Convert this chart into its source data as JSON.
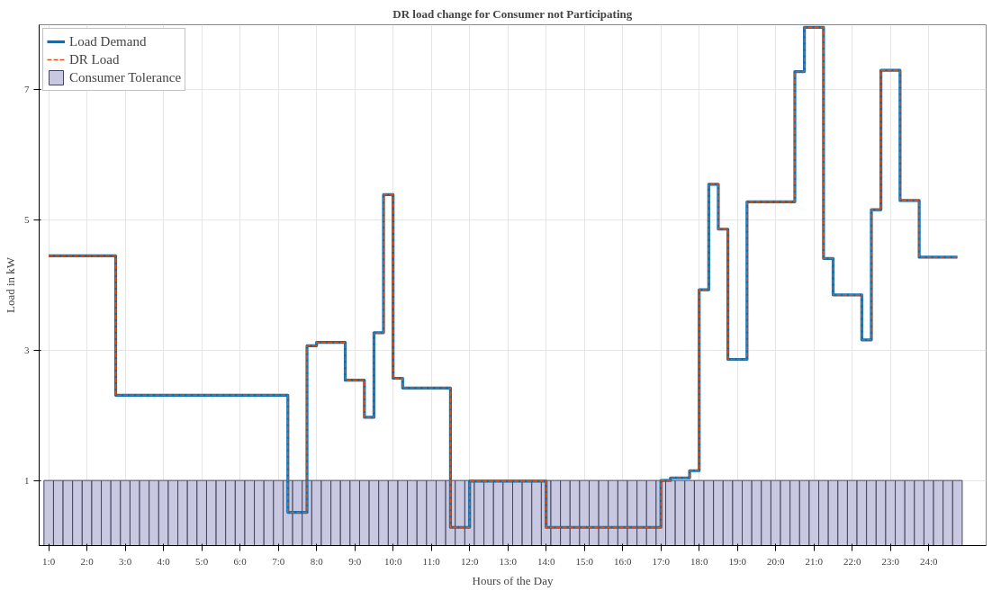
{
  "chart_data": {
    "type": "step",
    "title": "DR load change for Consumer not Participating",
    "xlabel": "Hours of the Day",
    "ylabel": "Load in kW",
    "categories": [
      "1:0",
      null,
      null,
      null,
      "2:0",
      null,
      null,
      null,
      "3:0",
      null,
      null,
      null,
      "4:0",
      null,
      null,
      null,
      "5:0",
      null,
      null,
      null,
      "6:0",
      null,
      null,
      null,
      "7:0",
      null,
      null,
      null,
      "8:0",
      null,
      null,
      null,
      "9:0",
      null,
      null,
      null,
      "10:0",
      null,
      null,
      null,
      "11:0",
      null,
      null,
      null,
      "12:0",
      null,
      null,
      null,
      "13:0",
      null,
      null,
      null,
      "14:0",
      null,
      null,
      null,
      "15:0",
      null,
      null,
      null,
      "16:0",
      null,
      null,
      null,
      "17:0",
      null,
      null,
      null,
      "18:0",
      null,
      null,
      null,
      "19:0",
      null,
      null,
      null,
      "20:0",
      null,
      null,
      null,
      "21:0",
      null,
      null,
      null,
      "22:0",
      null,
      null,
      null,
      "23:0",
      null,
      null,
      null,
      "24:0",
      null,
      null,
      null
    ],
    "ylim": [
      0,
      8
    ],
    "yticks": [
      1,
      3,
      5,
      7
    ],
    "grid": true,
    "legend": "top left",
    "series": [
      {
        "name": "Consumer Tolerance",
        "type": "bar",
        "color": "#c8c8e0",
        "values": [
          1,
          1,
          1,
          1,
          1,
          1,
          1,
          1,
          1,
          1,
          1,
          1,
          1,
          1,
          1,
          1,
          1,
          1,
          1,
          1,
          1,
          1,
          1,
          1,
          1,
          1,
          1,
          1,
          1,
          1,
          1,
          1,
          1,
          1,
          1,
          1,
          1,
          1,
          1,
          1,
          1,
          1,
          1,
          1,
          1,
          1,
          1,
          1,
          1,
          1,
          1,
          1,
          1,
          1,
          1,
          1,
          1,
          1,
          1,
          1,
          1,
          1,
          1,
          1,
          1,
          1,
          1,
          1,
          1,
          1,
          1,
          1,
          1,
          1,
          1,
          1,
          1,
          1,
          1,
          1,
          1,
          1,
          1,
          1,
          1,
          1,
          1,
          1,
          1,
          1,
          1,
          1,
          1,
          1,
          1,
          1
        ]
      },
      {
        "name": "Load Demand",
        "color": "#0072bd",
        "line_style": "solid",
        "values": [
          4.45,
          4.45,
          4.45,
          4.45,
          4.45,
          4.45,
          4.45,
          2.31,
          2.31,
          2.31,
          2.31,
          2.31,
          2.31,
          2.31,
          2.31,
          2.31,
          2.31,
          2.31,
          2.31,
          2.31,
          2.31,
          2.31,
          2.31,
          2.31,
          2.31,
          0.51,
          0.51,
          3.07,
          3.12,
          3.12,
          3.12,
          2.54,
          2.54,
          1.97,
          3.27,
          5.39,
          2.57,
          2.42,
          2.42,
          2.42,
          2.42,
          2.42,
          0.28,
          0.28,
          0.99,
          0.99,
          0.99,
          0.99,
          0.99,
          0.99,
          0.99,
          0.99,
          0.28,
          0.28,
          0.28,
          0.28,
          0.28,
          0.28,
          0.28,
          0.28,
          0.28,
          0.28,
          0.28,
          0.28,
          1.0,
          1.04,
          1.04,
          1.15,
          3.93,
          5.55,
          4.86,
          2.86,
          2.86,
          5.28,
          5.28,
          5.28,
          5.28,
          5.28,
          7.28,
          7.96,
          7.96,
          4.41,
          3.85,
          3.85,
          3.85,
          3.16,
          5.16,
          7.3,
          7.3,
          5.3,
          5.3,
          4.43,
          4.43,
          4.43,
          4.43,
          4.43
        ]
      },
      {
        "name": "DR Load",
        "color": "#d95319",
        "line_style": "dashed",
        "values": [
          4.45,
          4.45,
          4.45,
          4.45,
          4.45,
          4.45,
          4.45,
          2.31,
          2.31,
          2.31,
          2.31,
          2.31,
          2.31,
          2.31,
          2.31,
          2.31,
          2.31,
          2.31,
          2.31,
          2.31,
          2.31,
          2.31,
          2.31,
          2.31,
          2.31,
          0.51,
          0.51,
          3.07,
          3.12,
          3.12,
          3.12,
          2.54,
          2.54,
          1.97,
          3.27,
          5.39,
          2.57,
          2.42,
          2.42,
          2.42,
          2.42,
          2.42,
          0.28,
          0.28,
          0.99,
          0.99,
          0.99,
          0.99,
          0.99,
          0.99,
          0.99,
          0.99,
          0.28,
          0.28,
          0.28,
          0.28,
          0.28,
          0.28,
          0.28,
          0.28,
          0.28,
          0.28,
          0.28,
          0.28,
          1.0,
          1.04,
          1.04,
          1.15,
          3.93,
          5.55,
          4.86,
          2.86,
          2.86,
          5.28,
          5.28,
          5.28,
          5.28,
          5.28,
          7.28,
          7.96,
          7.96,
          4.41,
          3.85,
          3.85,
          3.85,
          3.16,
          5.16,
          7.3,
          7.3,
          5.3,
          5.3,
          4.43,
          4.43,
          4.43,
          4.43,
          4.43
        ]
      }
    ]
  }
}
